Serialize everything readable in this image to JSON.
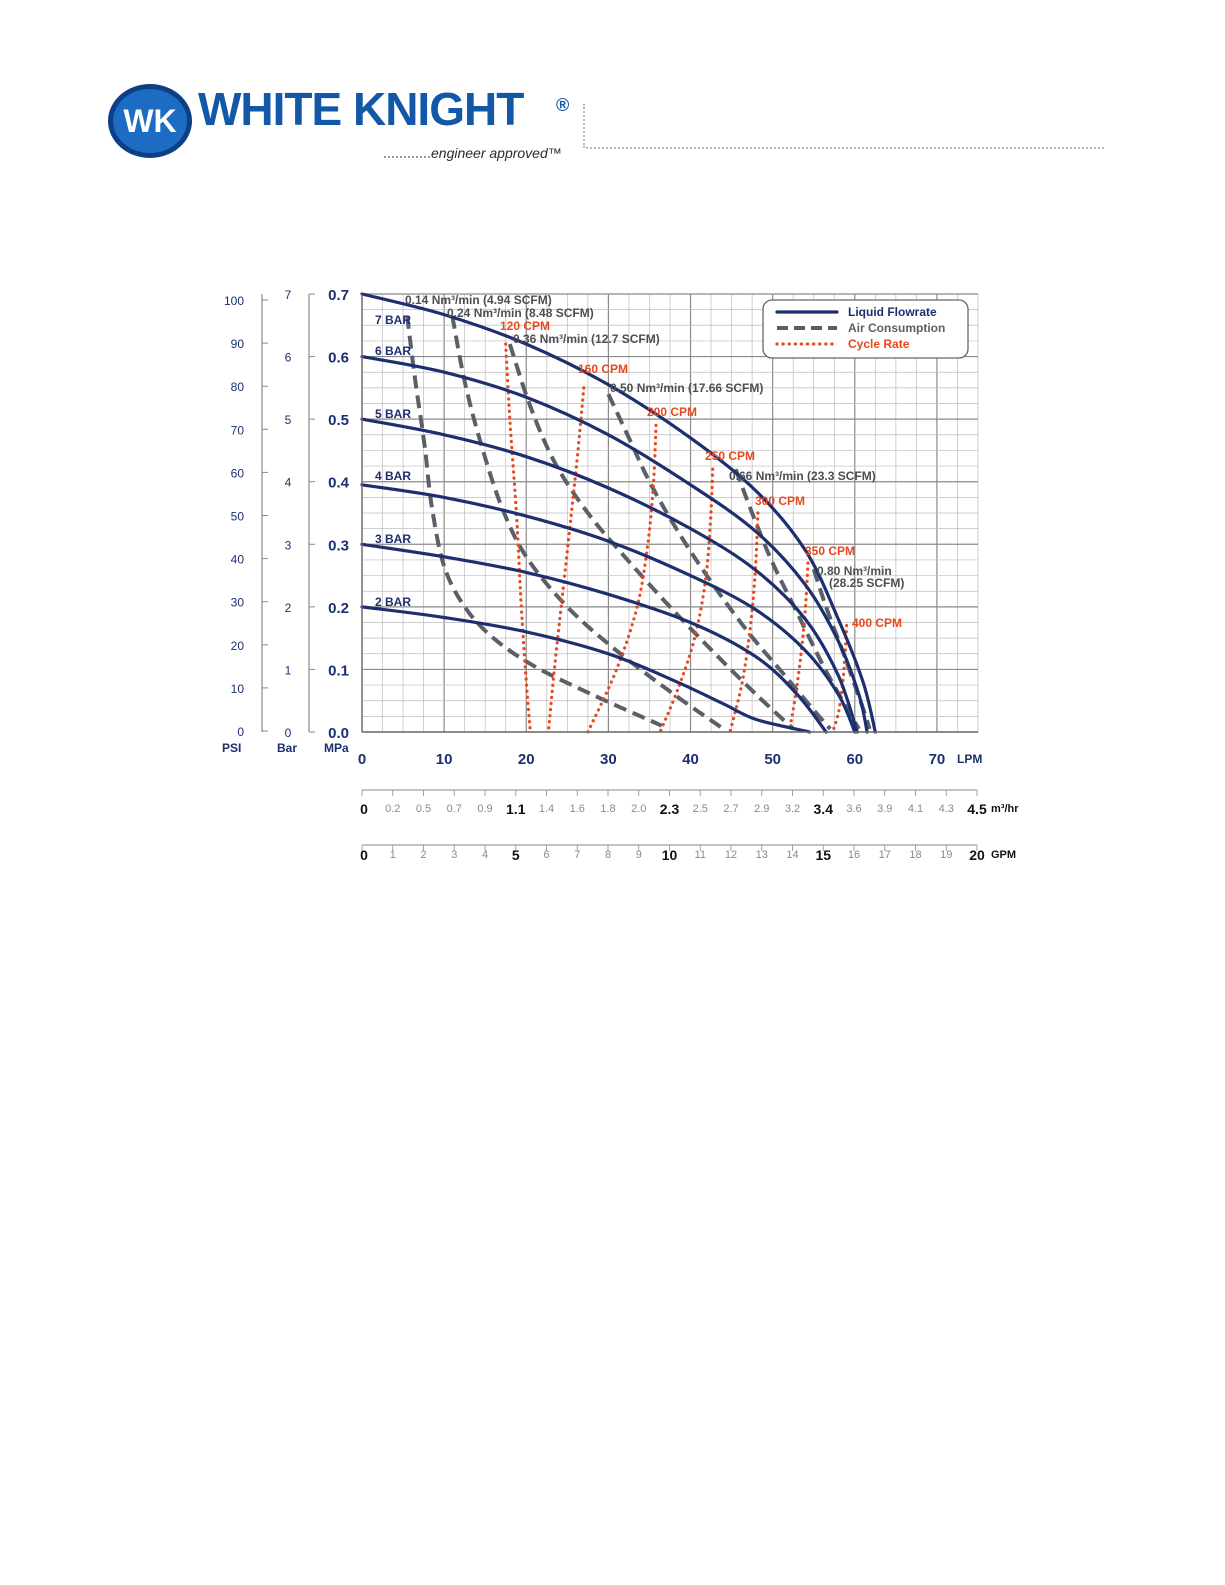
{
  "header": {
    "brand": "WHITE KNIGHT",
    "reg": "®",
    "tagline": "engineer approved™",
    "logo_monogram": "WK",
    "logo_icon": "wk-badge-icon",
    "colors": {
      "brand_blue": "#1257a8",
      "badge_dark": "#0d3f86"
    }
  },
  "legend": {
    "items": [
      {
        "label": "Liquid Flowrate",
        "style": "solid",
        "color": "#1d2f6f"
      },
      {
        "label": "Air Consumption",
        "style": "dashed",
        "color": "#5a6068"
      },
      {
        "label": "Cycle Rate",
        "style": "dotted",
        "color": "#e8481c"
      }
    ]
  },
  "chart_data": {
    "type": "line",
    "x_unit": "LPM",
    "xlim": [
      0,
      75
    ],
    "ylim": [
      0,
      0.7
    ],
    "grid": true,
    "legend_position": "top-right",
    "x_ticks": [
      "0",
      "10",
      "20",
      "30",
      "40",
      "50",
      "60",
      "70"
    ],
    "y_axes": [
      {
        "unit": "MPa",
        "ticks": [
          "0.0",
          "0.1",
          "0.2",
          "0.3",
          "0.4",
          "0.5",
          "0.6",
          "0.7"
        ]
      },
      {
        "unit": "Bar",
        "ticks": [
          "0",
          "1",
          "2",
          "3",
          "4",
          "5",
          "6",
          "7"
        ]
      },
      {
        "unit": "PSI",
        "ticks": [
          "0",
          "10",
          "20",
          "30",
          "40",
          "50",
          "60",
          "70",
          "80",
          "90",
          "100"
        ]
      }
    ],
    "secondary_x_axes": [
      {
        "unit": "m³/hr",
        "ticks": [
          "0",
          "0.2",
          "0.5",
          "0.7",
          "0.9",
          "1.1",
          "1.4",
          "1.6",
          "1.8",
          "2.0",
          "2.3",
          "2.5",
          "2.7",
          "2.9",
          "3.2",
          "3.4",
          "3.6",
          "3.9",
          "4.1",
          "4.3",
          "4.5"
        ],
        "major": [
          "0",
          "1.1",
          "2.3",
          "3.4",
          "4.5"
        ]
      },
      {
        "unit": "GPM",
        "ticks": [
          "0",
          "1",
          "2",
          "3",
          "4",
          "5",
          "6",
          "7",
          "8",
          "9",
          "10",
          "11",
          "12",
          "13",
          "14",
          "15",
          "16",
          "17",
          "18",
          "19",
          "20"
        ],
        "major": [
          "0",
          "5",
          "10",
          "15",
          "20"
        ]
      }
    ],
    "series": [
      {
        "name": "7 BAR",
        "group": "Liquid Flowrate",
        "style": "solid",
        "x": [
          0,
          10,
          20,
          30,
          40,
          48,
          54,
          58,
          61,
          62.5
        ],
        "y": [
          0.7,
          0.667,
          0.62,
          0.555,
          0.47,
          0.385,
          0.29,
          0.18,
          0.08,
          0.0
        ]
      },
      {
        "name": "6 BAR",
        "group": "Liquid Flowrate",
        "style": "solid",
        "x": [
          0,
          10,
          20,
          30,
          40,
          48,
          54,
          58,
          60.5,
          61.5
        ],
        "y": [
          0.6,
          0.575,
          0.535,
          0.475,
          0.395,
          0.32,
          0.235,
          0.145,
          0.06,
          0.0
        ]
      },
      {
        "name": "5 BAR",
        "group": "Liquid Flowrate",
        "style": "solid",
        "x": [
          0,
          10,
          20,
          30,
          40,
          48,
          54,
          58,
          60.3
        ],
        "y": [
          0.5,
          0.475,
          0.44,
          0.39,
          0.325,
          0.258,
          0.18,
          0.09,
          0.0
        ]
      },
      {
        "name": "4 BAR",
        "group": "Liquid Flowrate",
        "style": "solid",
        "x": [
          0,
          10,
          20,
          30,
          40,
          48,
          54,
          58,
          60
        ],
        "y": [
          0.395,
          0.375,
          0.345,
          0.305,
          0.25,
          0.195,
          0.13,
          0.06,
          0.0
        ]
      },
      {
        "name": "3 BAR",
        "group": "Liquid Flowrate",
        "style": "solid",
        "x": [
          0,
          10,
          20,
          30,
          40,
          48,
          53,
          56.5
        ],
        "y": [
          0.3,
          0.28,
          0.255,
          0.22,
          0.175,
          0.12,
          0.06,
          0.0
        ]
      },
      {
        "name": "2 BAR",
        "group": "Liquid Flowrate",
        "style": "solid",
        "x": [
          0,
          10,
          20,
          30,
          38,
          44,
          48,
          54.5
        ],
        "y": [
          0.2,
          0.183,
          0.16,
          0.125,
          0.082,
          0.045,
          0.02,
          0.0
        ]
      },
      {
        "name": "0.14 Nm³/min (4.94 SCFM)",
        "group": "Air Consumption",
        "style": "dashed",
        "x": [
          5.5,
          6.5,
          7.6,
          8.5,
          10.0,
          12.5,
          16.0,
          21.0,
          28.0,
          36.5
        ],
        "y": [
          0.665,
          0.56,
          0.46,
          0.36,
          0.265,
          0.2,
          0.15,
          0.105,
          0.06,
          0.01
        ]
      },
      {
        "name": "0.24 Nm³/min (8.48 SCFM)",
        "group": "Air Consumption",
        "style": "dashed",
        "x": [
          11.0,
          12.5,
          14.5,
          17.0,
          20.0,
          25.0,
          31.0,
          38.0,
          44.0
        ],
        "y": [
          0.665,
          0.56,
          0.46,
          0.36,
          0.28,
          0.2,
          0.13,
          0.06,
          0.005
        ]
      },
      {
        "name": "0.36 Nm³/min (12.7 SCFM)",
        "group": "Air Consumption",
        "style": "dashed",
        "x": [
          18.0,
          20.5,
          23.5,
          27.5,
          32.0,
          37.5,
          43.0,
          48.0,
          52.5
        ],
        "y": [
          0.62,
          0.52,
          0.43,
          0.35,
          0.28,
          0.2,
          0.125,
          0.06,
          0.005
        ]
      },
      {
        "name": "0.50 Nm³/min (17.66 SCFM)",
        "group": "Air Consumption",
        "style": "dashed",
        "x": [
          30.0,
          32.5,
          35.0,
          38.5,
          42.5,
          47.0,
          51.5,
          55.0,
          57.0
        ],
        "y": [
          0.54,
          0.47,
          0.4,
          0.32,
          0.24,
          0.16,
          0.09,
          0.035,
          0.005
        ]
      },
      {
        "name": "0.66 Nm³/min (23.3 SCFM)",
        "group": "Air Consumption",
        "style": "dashed",
        "x": [
          45.5,
          47.5,
          50.0,
          53.0,
          56.0,
          58.5,
          60.5
        ],
        "y": [
          0.42,
          0.35,
          0.27,
          0.19,
          0.11,
          0.05,
          0.005
        ]
      },
      {
        "name": "0.80 Nm³/min (28.25 SCFM)",
        "group": "Air Consumption",
        "style": "dashed",
        "x": [
          55.0,
          56.5,
          58.5,
          60.0,
          61.2,
          61.8
        ],
        "y": [
          0.26,
          0.2,
          0.13,
          0.075,
          0.03,
          0.005
        ]
      },
      {
        "name": "120 CPM",
        "group": "Cycle Rate",
        "style": "dotted",
        "x": [
          17.5,
          18.0,
          18.8,
          19.4,
          20.0,
          20.5
        ],
        "y": [
          0.62,
          0.5,
          0.35,
          0.2,
          0.08,
          0.0
        ]
      },
      {
        "name": "160 CPM",
        "group": "Cycle Rate",
        "style": "dotted",
        "x": [
          27.0,
          26.3,
          25.5,
          24.5,
          23.5,
          22.7
        ],
        "y": [
          0.55,
          0.45,
          0.35,
          0.23,
          0.11,
          0.0
        ]
      },
      {
        "name": "200 CPM",
        "group": "Cycle Rate",
        "style": "dotted",
        "x": [
          35.8,
          35.5,
          34.8,
          33.5,
          31.0,
          27.5
        ],
        "y": [
          0.49,
          0.4,
          0.3,
          0.2,
          0.1,
          0.0
        ]
      },
      {
        "name": "250 CPM",
        "group": "Cycle Rate",
        "style": "dotted",
        "x": [
          42.7,
          42.4,
          41.8,
          40.5,
          38.5,
          36.3
        ],
        "y": [
          0.42,
          0.33,
          0.24,
          0.15,
          0.07,
          0.0
        ]
      },
      {
        "name": "300 CPM",
        "group": "Cycle Rate",
        "style": "dotted",
        "x": [
          48.2,
          47.9,
          47.3,
          46.3,
          44.8
        ],
        "y": [
          0.35,
          0.26,
          0.17,
          0.08,
          0.0
        ]
      },
      {
        "name": "350 CPM",
        "group": "Cycle Rate",
        "style": "dotted",
        "x": [
          54.3,
          54.0,
          53.5,
          52.8,
          52.0
        ],
        "y": [
          0.27,
          0.2,
          0.13,
          0.06,
          0.0
        ]
      },
      {
        "name": "400 CPM",
        "group": "Cycle Rate",
        "style": "dotted",
        "x": [
          59.0,
          58.8,
          58.5,
          58.0,
          57.3
        ],
        "y": [
          0.17,
          0.12,
          0.075,
          0.03,
          0.0
        ]
      }
    ],
    "annotations": [
      {
        "text": "7 BAR",
        "kind": "bar"
      },
      {
        "text": "6 BAR",
        "kind": "bar"
      },
      {
        "text": "5 BAR",
        "kind": "bar"
      },
      {
        "text": "4 BAR",
        "kind": "bar"
      },
      {
        "text": "3 BAR",
        "kind": "bar"
      },
      {
        "text": "2 BAR",
        "kind": "bar"
      },
      {
        "text": "0.14 Nm³/min (4.94 SCFM)",
        "kind": "air"
      },
      {
        "text": "0.24 Nm³/min (8.48 SCFM)",
        "kind": "air"
      },
      {
        "text": "0.36 Nm³/min (12.7 SCFM)",
        "kind": "air"
      },
      {
        "text": "0.50 Nm³/min (17.66 SCFM)",
        "kind": "air"
      },
      {
        "text": "0.66 Nm³/min (23.3 SCFM)",
        "kind": "air"
      },
      {
        "text": "0.80 Nm³/min",
        "kind": "air"
      },
      {
        "text": "(28.25 SCFM)",
        "kind": "air"
      },
      {
        "text": "120 CPM",
        "kind": "cpm"
      },
      {
        "text": "160 CPM",
        "kind": "cpm"
      },
      {
        "text": "200 CPM",
        "kind": "cpm"
      },
      {
        "text": "250 CPM",
        "kind": "cpm"
      },
      {
        "text": "300 CPM",
        "kind": "cpm"
      },
      {
        "text": "350 CPM",
        "kind": "cpm"
      },
      {
        "text": "400 CPM",
        "kind": "cpm"
      }
    ],
    "colors": {
      "liquid": "#1d2f6f",
      "air": "#5a6068",
      "cycle": "#e8481c",
      "axis_blue": "#1d2f6f",
      "grid_minor": "#bdbdbd",
      "grid_major": "#8a8a8a"
    }
  }
}
